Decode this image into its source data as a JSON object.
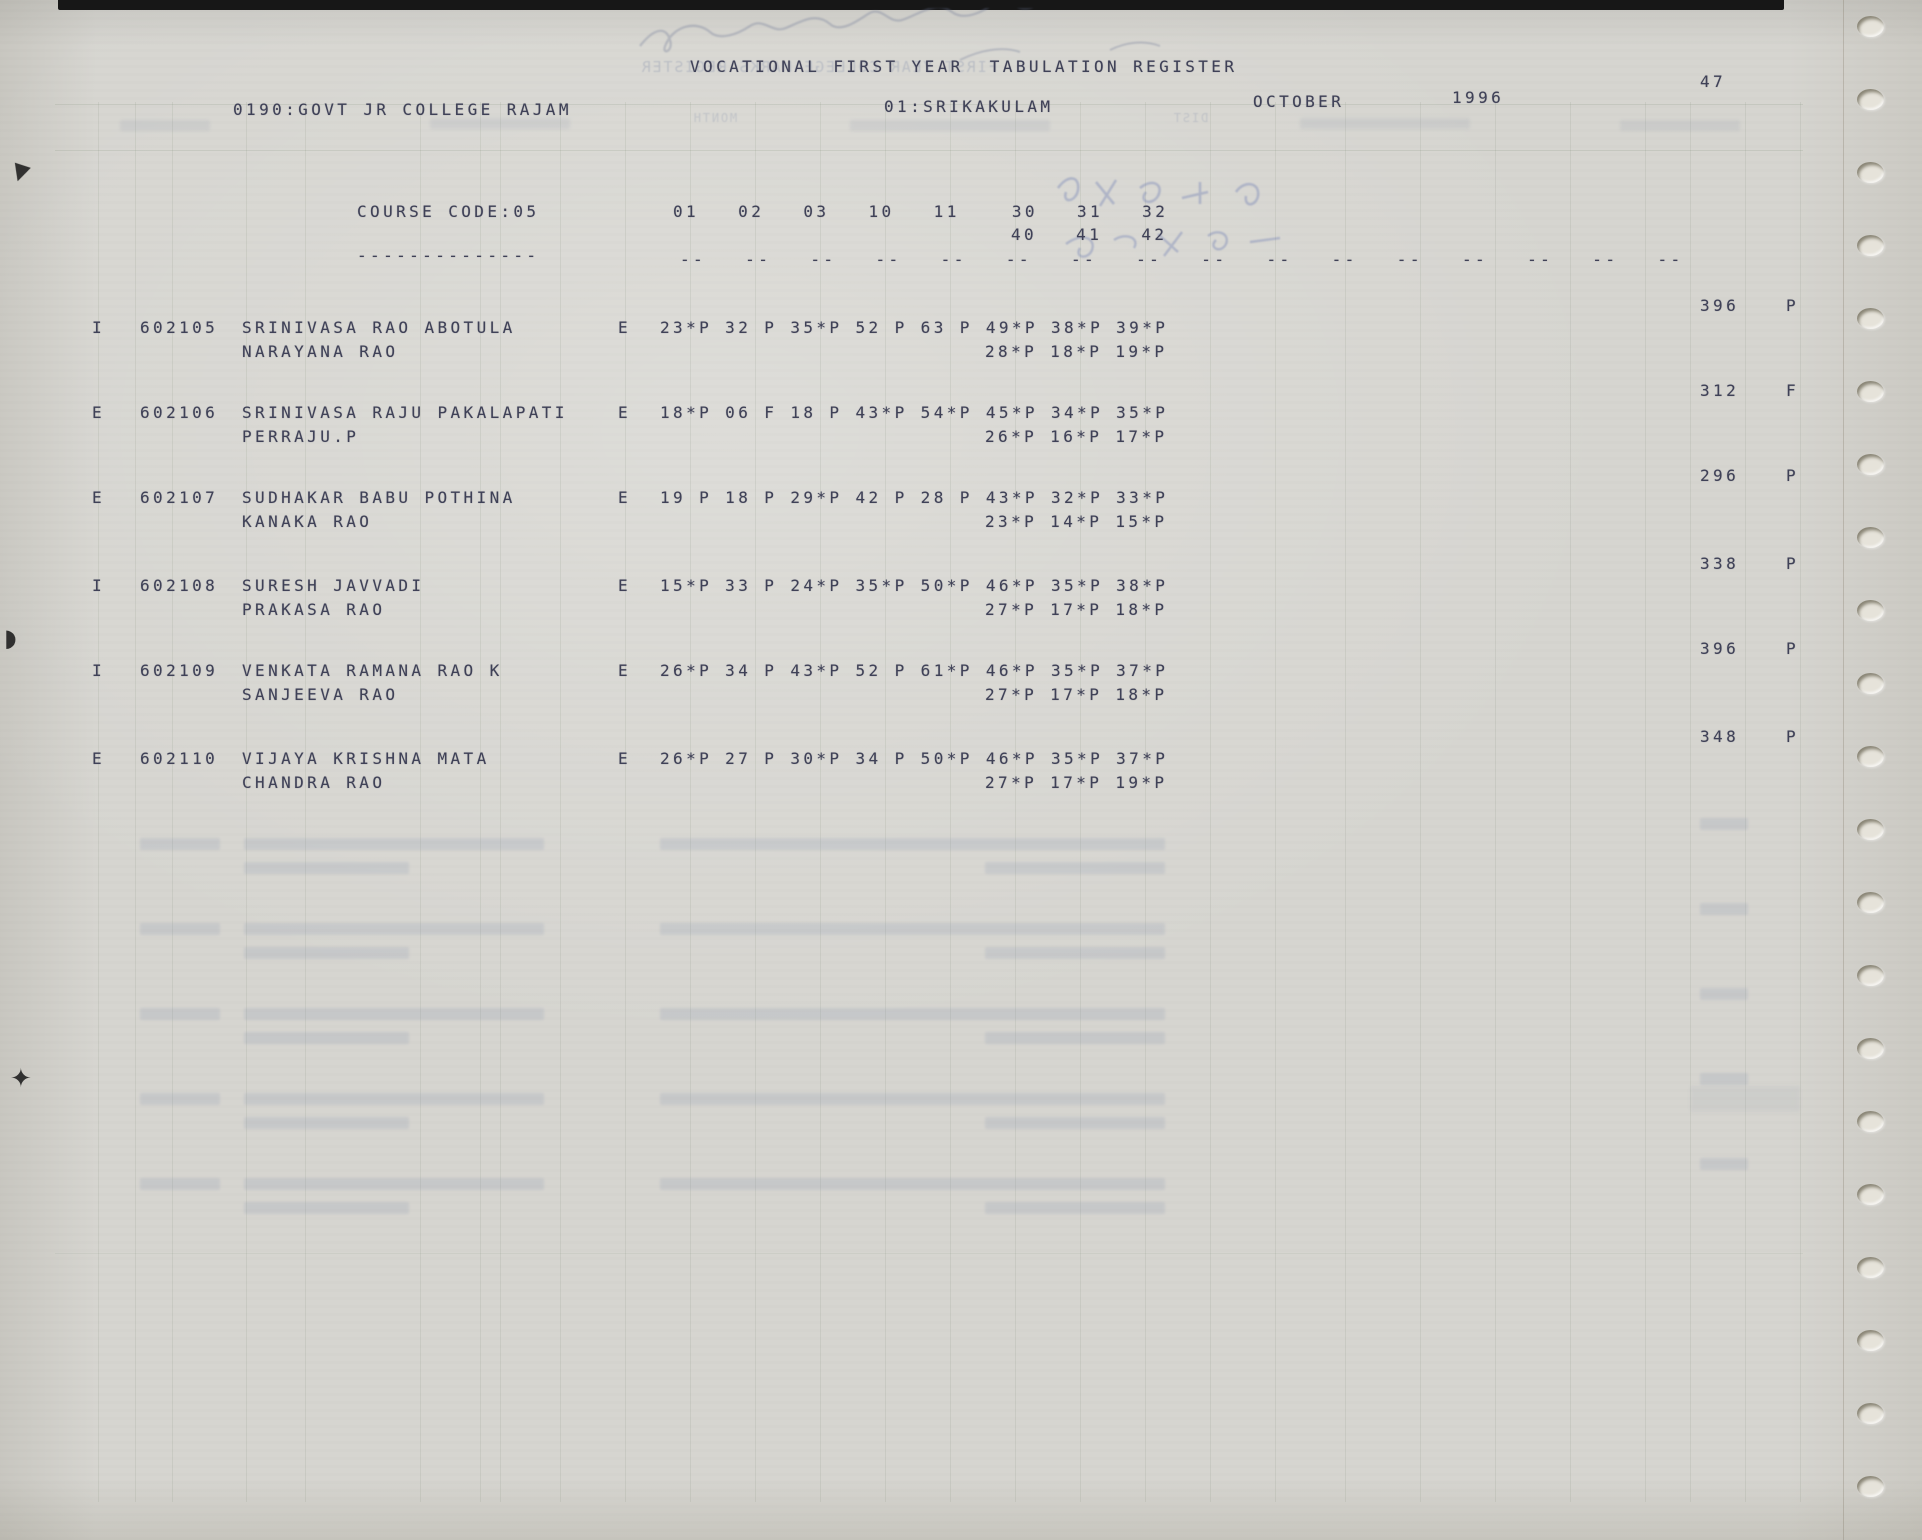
{
  "page": {
    "title": "VOCATIONAL FIRST YEAR  TABULATION REGISTER",
    "college": "0190:GOVT JR COLLEGE RAJAM",
    "district": "01:SRIKAKULAM",
    "month": "OCTOBER",
    "year": "1996",
    "page_number": "47"
  },
  "course": {
    "label": "COURSE CODE:05",
    "columns_row1": "01   02   03   10   11    30   31   32",
    "columns_row2": "40   41   42",
    "rule_long": "--------------",
    "rule_pair": "--",
    "rule_pair_count": 16
  },
  "students": [
    {
      "status": "I",
      "roll": "602105",
      "name": "SRINIVASA RAO ABOTULA",
      "parent": "NARAYANA RAO",
      "medium": "E",
      "marks1": "23*P 32 P 35*P 52 P 63 P 49*P 38*P 39*P",
      "marks2": "28*P 18*P 19*P",
      "total": "396",
      "result": "P"
    },
    {
      "status": "E",
      "roll": "602106",
      "name": "SRINIVASA RAJU PAKALAPATI",
      "parent": "PERRAJU.P",
      "medium": "E",
      "marks1": "18*P 06 F 18 P 43*P 54*P 45*P 34*P 35*P",
      "marks2": "26*P 16*P 17*P",
      "total": "312",
      "result": "F"
    },
    {
      "status": "E",
      "roll": "602107",
      "name": "SUDHAKAR BABU POTHINA",
      "parent": "KANAKA RAO",
      "medium": "E",
      "marks1": "19 P 18 P 29*P 42 P 28 P 43*P 32*P 33*P",
      "marks2": "23*P 14*P 15*P",
      "total": "296",
      "result": "P"
    },
    {
      "status": "I",
      "roll": "602108",
      "name": "SURESH JAVVADI",
      "parent": "PRAKASA RAO",
      "medium": "E",
      "marks1": "15*P 33 P 24*P 35*P 50*P 46*P 35*P 38*P",
      "marks2": "27*P 17*P 18*P",
      "total": "338",
      "result": "P"
    },
    {
      "status": "I",
      "roll": "602109",
      "name": "VENKATA RAMANA RAO K",
      "parent": "SANJEEVA RAO",
      "medium": "E",
      "marks1": "26*P 34 P 43*P 52 P 61*P 46*P 35*P 37*P",
      "marks2": "27*P 17*P 18*P",
      "total": "396",
      "result": "P"
    },
    {
      "status": "E",
      "roll": "602110",
      "name": "VIJAYA KRISHNA MATA",
      "parent": "CHANDRA RAO",
      "medium": "E",
      "marks1": "26*P 27 P 30*P 34 P 50*P 46*P 35*P 37*P",
      "marks2": "27*P 17*P 19*P",
      "total": "348",
      "result": "P"
    }
  ],
  "bleed_through": {
    "title_mirror": "FIRST YEAR COLLEGE MARKS REGISTER",
    "label_month": "MONTH",
    "label_dist": "DIST"
  }
}
